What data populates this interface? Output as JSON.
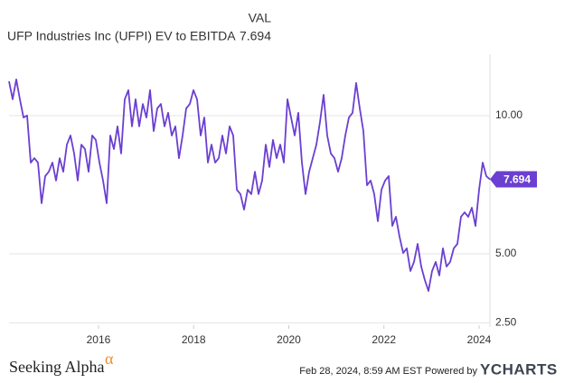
{
  "chart_data": {
    "type": "line",
    "header_label": "VAL",
    "xlim": [
      2014.12,
      2024.228
    ],
    "xticks": [
      2016,
      2018,
      2020,
      2022,
      2024
    ],
    "ylim": [
      2.42,
      12.22
    ],
    "yticks": [
      {
        "value": 2.5,
        "label": "2.50"
      },
      {
        "value": 5,
        "label": "5.00"
      },
      {
        "value": 10,
        "label": "10.00"
      }
    ],
    "grid": true,
    "x": [
      2014.12,
      2014.196,
      2014.272,
      2014.348,
      2014.424,
      2014.5,
      2014.576,
      2014.652,
      2014.728,
      2014.804,
      2014.88,
      2014.956,
      2015.032,
      2015.108,
      2015.184,
      2015.26,
      2015.336,
      2015.412,
      2015.488,
      2015.564,
      2015.64,
      2015.716,
      2015.792,
      2015.868,
      2015.944,
      2016.02,
      2016.096,
      2016.172,
      2016.248,
      2016.324,
      2016.4,
      2016.476,
      2016.552,
      2016.628,
      2016.704,
      2016.78,
      2016.856,
      2016.932,
      2017.008,
      2017.084,
      2017.16,
      2017.236,
      2017.312,
      2017.388,
      2017.464,
      2017.54,
      2017.616,
      2017.692,
      2017.768,
      2017.844,
      2017.92,
      2017.996,
      2018.072,
      2018.148,
      2018.224,
      2018.3,
      2018.376,
      2018.452,
      2018.528,
      2018.604,
      2018.68,
      2018.756,
      2018.832,
      2018.908,
      2018.984,
      2019.06,
      2019.136,
      2019.212,
      2019.288,
      2019.364,
      2019.44,
      2019.516,
      2019.592,
      2019.668,
      2019.744,
      2019.82,
      2019.896,
      2019.972,
      2020.048,
      2020.124,
      2020.2,
      2020.276,
      2020.352,
      2020.428,
      2020.504,
      2020.58,
      2020.656,
      2020.732,
      2020.808,
      2020.884,
      2020.96,
      2021.036,
      2021.112,
      2021.188,
      2021.264,
      2021.34,
      2021.416,
      2021.492,
      2021.568,
      2021.644,
      2021.72,
      2021.796,
      2021.872,
      2021.948,
      2022.024,
      2022.1,
      2022.176,
      2022.252,
      2022.328,
      2022.404,
      2022.48,
      2022.556,
      2022.632,
      2022.708,
      2022.784,
      2022.86,
      2022.936,
      2023.012,
      2023.088,
      2023.164,
      2023.24,
      2023.316,
      2023.392,
      2023.468,
      2023.544,
      2023.62,
      2023.696,
      2023.772,
      2023.848,
      2023.924,
      2024.0,
      2024.076,
      2024.152,
      2024.228
    ],
    "series": [
      {
        "name": "UFP Industries Inc (UFPI) EV to EBITDA",
        "color": "#6b3fd1",
        "values": [
          11.24,
          10.59,
          11.31,
          10.59,
          9.93,
          10.0,
          8.3,
          8.46,
          8.3,
          6.83,
          7.81,
          7.97,
          8.3,
          7.65,
          8.46,
          7.97,
          8.95,
          9.28,
          8.63,
          7.65,
          8.95,
          8.79,
          7.97,
          9.28,
          9.12,
          8.3,
          7.65,
          6.83,
          9.28,
          8.79,
          9.61,
          8.63,
          10.59,
          10.92,
          9.61,
          10.59,
          9.61,
          10.42,
          9.93,
          10.92,
          9.44,
          10.26,
          10.42,
          9.61,
          10.1,
          9.28,
          9.61,
          8.46,
          9.28,
          10.26,
          10.42,
          10.92,
          10.59,
          9.28,
          9.93,
          8.3,
          8.95,
          8.3,
          8.46,
          9.28,
          8.63,
          9.61,
          9.28,
          7.32,
          7.16,
          6.6,
          7.32,
          7.16,
          7.97,
          7.16,
          7.65,
          8.95,
          8.14,
          9.12,
          8.46,
          8.95,
          8.3,
          10.59,
          9.93,
          9.28,
          10.1,
          8.3,
          7.16,
          7.97,
          8.46,
          8.95,
          9.77,
          10.75,
          9.28,
          8.63,
          8.46,
          7.97,
          8.46,
          9.28,
          9.93,
          10.1,
          11.18,
          10.26,
          9.44,
          7.48,
          7.65,
          7.16,
          6.18,
          7.32,
          7.65,
          7.81,
          6.01,
          6.34,
          5.62,
          5.03,
          5.2,
          4.38,
          4.71,
          5.36,
          4.54,
          4.05,
          3.66,
          4.38,
          4.71,
          4.22,
          5.2,
          4.54,
          4.71,
          5.2,
          5.36,
          6.34,
          6.5,
          6.34,
          6.67,
          6.01,
          7.32,
          8.3,
          7.81,
          7.694
        ]
      }
    ],
    "footer": {
      "brand": "Seeking Alpha",
      "brand_mark": "α",
      "timestamp": "Feb 28, 2024, 8:59 AM EST Powered by",
      "source": "YCHARTS"
    }
  }
}
